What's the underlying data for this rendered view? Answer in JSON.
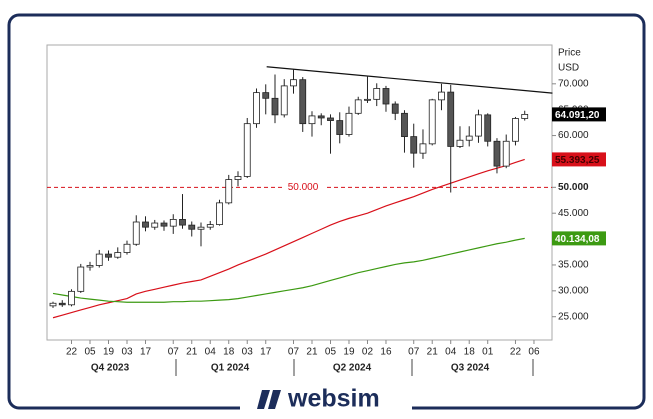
{
  "chart_data": {
    "type": "candlestick",
    "axis_title": "Price",
    "axis_unit": "USD",
    "ylim": [
      20500,
      77500
    ],
    "yticks": [
      {
        "value": 25000,
        "label": "25.000"
      },
      {
        "value": 30000,
        "label": "30.000"
      },
      {
        "value": 35000,
        "label": "35.000"
      },
      {
        "value": 40000,
        "label": "40.000"
      },
      {
        "value": 45000,
        "label": "45.000"
      },
      {
        "value": 50000,
        "label": "50.000"
      },
      {
        "value": 55000,
        "label": "55.000"
      },
      {
        "value": 60000,
        "label": "60.000"
      },
      {
        "value": 65000,
        "label": "65.000"
      },
      {
        "value": 70000,
        "label": "70.000"
      }
    ],
    "xlim": [
      -0.65,
      53.95
    ],
    "xticks": [
      {
        "value": 2,
        "label": "22"
      },
      {
        "value": 4,
        "label": "05"
      },
      {
        "value": 6,
        "label": "19"
      },
      {
        "value": 8,
        "label": "03"
      },
      {
        "value": 10,
        "label": "17"
      },
      {
        "value": 13,
        "label": "07"
      },
      {
        "value": 15,
        "label": "21"
      },
      {
        "value": 17,
        "label": "04"
      },
      {
        "value": 19,
        "label": "18"
      },
      {
        "value": 21,
        "label": "03"
      },
      {
        "value": 23,
        "label": "17"
      },
      {
        "value": 26,
        "label": "07"
      },
      {
        "value": 28,
        "label": "21"
      },
      {
        "value": 30,
        "label": "05"
      },
      {
        "value": 32,
        "label": "19"
      },
      {
        "value": 34,
        "label": "02"
      },
      {
        "value": 36,
        "label": "16"
      },
      {
        "value": 39,
        "label": "07"
      },
      {
        "value": 41,
        "label": "21"
      },
      {
        "value": 43,
        "label": "04"
      },
      {
        "value": 45,
        "label": "18"
      },
      {
        "value": 47,
        "label": "01"
      },
      {
        "value": 50,
        "label": "22"
      },
      {
        "value": 52,
        "label": "06"
      }
    ],
    "quarters": [
      "Q4 2023",
      "Q1 2024",
      "Q2 2024",
      "Q3 2024"
    ],
    "up_color": "#ffffff",
    "down_color": "#555555",
    "open": [
      27100,
      27600,
      27300,
      29900,
      34600,
      34900,
      37100,
      36500,
      37400,
      39000,
      43300,
      42300,
      43100,
      42500,
      43800,
      42700,
      41900,
      42300,
      42800,
      47000,
      51500,
      52100,
      62300,
      68300,
      67200,
      64000,
      69600,
      70800,
      62300,
      63800,
      63400,
      62900,
      60200,
      64300,
      66900,
      67000,
      69100,
      66100,
      64300,
      59800,
      56600,
      58400,
      66900,
      68400,
      57900,
      59100,
      59900,
      64000,
      58900,
      54100,
      58900,
      63300
    ],
    "high": [
      27900,
      28200,
      30300,
      35200,
      35600,
      37900,
      37800,
      38400,
      39700,
      44600,
      44400,
      43700,
      43600,
      44800,
      48700,
      43400,
      43200,
      43500,
      47600,
      52400,
      53100,
      63400,
      69100,
      69900,
      71800,
      70900,
      72800,
      71300,
      64700,
      64300,
      64100,
      64500,
      65600,
      67500,
      71600,
      70100,
      69600,
      66600,
      64900,
      62300,
      61200,
      67100,
      70000,
      69800,
      61800,
      61800,
      65000,
      64300,
      59500,
      60200,
      63600,
      64800
    ],
    "low": [
      26700,
      26900,
      27000,
      29600,
      33900,
      34500,
      35800,
      36200,
      37000,
      38700,
      41500,
      41800,
      41600,
      41000,
      42000,
      40500,
      38600,
      41800,
      42600,
      46700,
      50200,
      51800,
      61500,
      64100,
      62400,
      63500,
      68100,
      60700,
      59800,
      62000,
      56500,
      58500,
      59800,
      64000,
      66300,
      65700,
      64600,
      63000,
      56700,
      53800,
      55500,
      58100,
      64900,
      49000,
      57600,
      57900,
      58600,
      57900,
      52700,
      53700,
      58100,
      62900
    ],
    "close": [
      27600,
      27300,
      29900,
      34600,
      34900,
      37100,
      36500,
      37400,
      39000,
      43300,
      42300,
      43100,
      42500,
      43800,
      42700,
      41900,
      42300,
      42800,
      47000,
      51500,
      52100,
      62300,
      68300,
      67200,
      64000,
      69600,
      70800,
      62300,
      63800,
      63400,
      62900,
      60200,
      64300,
      66900,
      67000,
      69100,
      66100,
      64300,
      59800,
      56600,
      58400,
      66900,
      68400,
      57900,
      59100,
      59900,
      64000,
      58900,
      54100,
      58900,
      63300,
      64091.2
    ],
    "last_price_label": "64.091,20",
    "series": [
      {
        "color": "#d8101a",
        "last_label": "55.393,25",
        "values": [
          24800,
          25300,
          25800,
          26300,
          26800,
          27300,
          27700,
          28100,
          28500,
          29400,
          29900,
          30300,
          30700,
          31100,
          31500,
          31800,
          32100,
          32800,
          33500,
          34200,
          35000,
          35700,
          36400,
          37100,
          37900,
          38700,
          39500,
          40300,
          41100,
          41900,
          42700,
          43400,
          44000,
          44500,
          45000,
          45700,
          46400,
          47000,
          47600,
          48200,
          48900,
          49600,
          50200,
          50800,
          51400,
          52000,
          52600,
          53200,
          53700,
          54200,
          54800,
          55393.25
        ]
      },
      {
        "color": "#3c9a12",
        "last_label": "40.134,08",
        "values": [
          29500,
          29200,
          28900,
          28600,
          28400,
          28200,
          28000,
          27900,
          27800,
          27800,
          27800,
          27800,
          27800,
          27900,
          27900,
          28000,
          28000,
          28100,
          28200,
          28300,
          28500,
          28800,
          29100,
          29400,
          29700,
          30000,
          30300,
          30600,
          31000,
          31500,
          32000,
          32500,
          33000,
          33500,
          33900,
          34300,
          34700,
          35100,
          35400,
          35600,
          35900,
          36300,
          36700,
          37100,
          37500,
          37900,
          38300,
          38700,
          39100,
          39400,
          39800,
          40134.08
        ]
      }
    ],
    "trendline": {
      "x": [
        23.1,
        54
      ],
      "y": [
        73300,
        68200
      ]
    },
    "hline": {
      "value": 50000,
      "label": "50.000",
      "color": "#d8101a"
    }
  },
  "brand": "websim"
}
